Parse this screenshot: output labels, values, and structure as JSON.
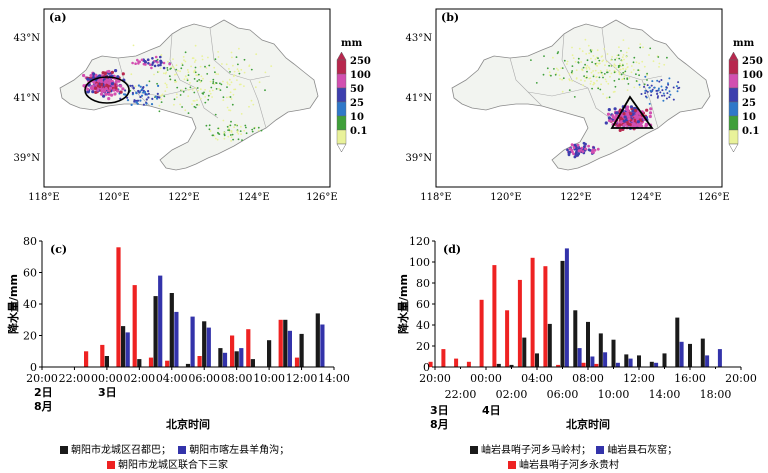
{
  "colors": {
    "land": "#f2f4f0",
    "ocean": "#ffffff",
    "border": "#8a8a8a",
    "series_black": "#1a1a1a",
    "series_blue": "#3333aa",
    "series_red": "#ee2222",
    "precip_scale": [
      "#e9f29a",
      "#3f9f3a",
      "#2f78c9",
      "#3d3fae",
      "#d24fb0",
      "#b8274e"
    ]
  },
  "maps": [
    {
      "panel": "(a)",
      "unit": "mm",
      "colorbar_ticks": [
        "250",
        "100",
        "50",
        "25",
        "10",
        "0.1"
      ],
      "lat_labels": [
        "43°N",
        "41°N",
        "39°N"
      ],
      "lon_labels": [
        "118°E",
        "120°E",
        "122°E",
        "124°E",
        "126°E"
      ],
      "highlight_shape": "ellipse"
    },
    {
      "panel": "(b)",
      "unit": "mm",
      "colorbar_ticks": [
        "250",
        "100",
        "50",
        "25",
        "10",
        "0.1"
      ],
      "lat_labels": [
        "43°N",
        "41°N",
        "39°N"
      ],
      "lon_labels": [
        "118°E",
        "120°E",
        "122°E",
        "124°E",
        "126°E"
      ],
      "highlight_shape": "triangle"
    }
  ],
  "chart_data": [
    {
      "panel": "(c)",
      "type": "bar",
      "ylabel": "降水量/mm",
      "xlabel": "北京时间",
      "ylim": [
        0,
        80
      ],
      "yticks": [
        0,
        20,
        40,
        60,
        80
      ],
      "x_ticks": [
        "20:00",
        "22:00",
        "00:00",
        "02:00",
        "04:00",
        "06:00",
        "08:00",
        "10:00",
        "12:00",
        "14:00"
      ],
      "date_labels": [
        [
          "2日",
          "8月"
        ],
        [
          "3日"
        ]
      ],
      "x_hours": [
        20,
        21,
        22,
        23,
        24,
        25,
        26,
        27,
        28,
        29,
        30,
        31,
        32,
        33,
        34,
        35,
        36,
        37,
        38
      ],
      "series": [
        {
          "name": "朝阳市龙城区召都巴",
          "color_key": "series_black",
          "values": [
            0,
            0,
            0,
            0,
            7,
            26,
            5,
            45,
            47,
            2,
            29,
            12,
            10,
            5,
            17,
            30,
            21,
            34,
            0
          ]
        },
        {
          "name": "朝阳市喀左县羊角沟",
          "color_key": "series_blue",
          "values": [
            0,
            0,
            0,
            0,
            0,
            22,
            0,
            58,
            35,
            32,
            25,
            9,
            12,
            0,
            0,
            23,
            0,
            27,
            0
          ]
        },
        {
          "name": "朝阳市龙城区联合下三家",
          "color_key": "series_red",
          "values": [
            0,
            0,
            0,
            10,
            14,
            76,
            52,
            6,
            4,
            0,
            7,
            0,
            20,
            24,
            0,
            30,
            6,
            0,
            0
          ]
        }
      ]
    },
    {
      "panel": "(d)",
      "type": "bar",
      "ylabel": "降水量/mm",
      "xlabel": "北京时间",
      "ylim": [
        0,
        120
      ],
      "yticks": [
        0,
        20,
        40,
        60,
        80,
        100,
        120
      ],
      "x_ticks": [
        "20:00",
        "00:00",
        "04:00",
        "08:00",
        "12:00",
        "16:00",
        "20:00"
      ],
      "x_ticks_lower": [
        "22:00",
        "02:00",
        "06:00",
        "10:00",
        "14:00",
        "18:00"
      ],
      "date_labels": [
        [
          "3日",
          "8月"
        ],
        [
          "4日"
        ]
      ],
      "x_hours": [
        20,
        21,
        22,
        23,
        24,
        25,
        26,
        27,
        28,
        29,
        30,
        31,
        32,
        33,
        34,
        35,
        36,
        37,
        38,
        39,
        40,
        41,
        42,
        43
      ],
      "series": [
        {
          "name": "岫岩县哨子河乡马岭村",
          "color_key": "series_black",
          "values": [
            0,
            0,
            0,
            0,
            0,
            3,
            2,
            28,
            13,
            41,
            101,
            54,
            43,
            32,
            26,
            12,
            11,
            5,
            13,
            47,
            22,
            27,
            0,
            0
          ]
        },
        {
          "name": "岫岩县石灰窑",
          "color_key": "series_blue",
          "values": [
            0,
            0,
            0,
            0,
            0,
            0,
            0,
            0,
            0,
            0,
            113,
            18,
            10,
            14,
            4,
            8,
            0,
            4,
            0,
            24,
            0,
            11,
            17,
            0
          ]
        },
        {
          "name": "岫岩县哨子河乡永贵村",
          "color_key": "series_red",
          "values": [
            5,
            17,
            8,
            5,
            64,
            97,
            54,
            83,
            104,
            96,
            2,
            0,
            4,
            3,
            0,
            0,
            0,
            0,
            0,
            0,
            0,
            0,
            0,
            0
          ]
        }
      ]
    }
  ]
}
